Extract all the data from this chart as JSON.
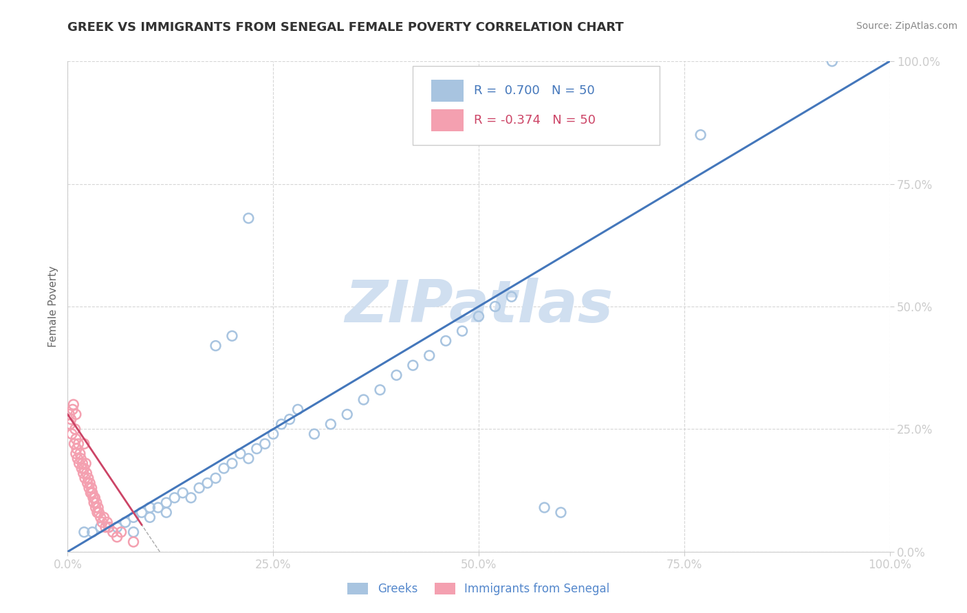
{
  "title": "GREEK VS IMMIGRANTS FROM SENEGAL FEMALE POVERTY CORRELATION CHART",
  "source_text": "Source: ZipAtlas.com",
  "ylabel": "Female Poverty",
  "ytick_values": [
    0,
    0.25,
    0.5,
    0.75,
    1.0
  ],
  "xtick_values": [
    0,
    0.25,
    0.5,
    0.75,
    1.0
  ],
  "xlim": [
    0,
    1.0
  ],
  "ylim": [
    0,
    1.0
  ],
  "greek_color": "#a8c4e0",
  "senegal_color": "#f4a0b0",
  "blue_line_color": "#4477bb",
  "pink_line_color": "#cc4466",
  "R_greek": 0.7,
  "R_senegal": -0.374,
  "N": 50,
  "watermark": "ZIPatlas",
  "watermark_color": "#d0dff0",
  "background_color": "#ffffff",
  "title_color": "#333333",
  "title_fontsize": 13,
  "tick_label_color": "#5588cc",
  "grid_color": "#cccccc",
  "legend_fontsize": 13,
  "greek_points_x": [
    0.02,
    0.03,
    0.04,
    0.05,
    0.06,
    0.07,
    0.08,
    0.08,
    0.09,
    0.1,
    0.1,
    0.11,
    0.12,
    0.12,
    0.13,
    0.14,
    0.15,
    0.16,
    0.17,
    0.18,
    0.19,
    0.2,
    0.21,
    0.22,
    0.23,
    0.24,
    0.25,
    0.26,
    0.27,
    0.28,
    0.3,
    0.32,
    0.34,
    0.36,
    0.38,
    0.4,
    0.42,
    0.44,
    0.46,
    0.48,
    0.5,
    0.52,
    0.54,
    0.18,
    0.2,
    0.22,
    0.58,
    0.6,
    0.77,
    0.93
  ],
  "greek_points_y": [
    0.04,
    0.04,
    0.05,
    0.05,
    0.05,
    0.06,
    0.04,
    0.07,
    0.08,
    0.07,
    0.09,
    0.09,
    0.1,
    0.08,
    0.11,
    0.12,
    0.11,
    0.13,
    0.14,
    0.15,
    0.17,
    0.18,
    0.2,
    0.19,
    0.21,
    0.22,
    0.24,
    0.26,
    0.27,
    0.29,
    0.24,
    0.26,
    0.28,
    0.31,
    0.33,
    0.36,
    0.38,
    0.4,
    0.43,
    0.45,
    0.48,
    0.5,
    0.52,
    0.42,
    0.44,
    0.68,
    0.09,
    0.08,
    0.85,
    1.0
  ],
  "senegal_points_x": [
    0.002,
    0.003,
    0.004,
    0.005,
    0.006,
    0.007,
    0.008,
    0.009,
    0.01,
    0.01,
    0.011,
    0.012,
    0.013,
    0.014,
    0.015,
    0.016,
    0.017,
    0.018,
    0.019,
    0.02,
    0.02,
    0.021,
    0.022,
    0.023,
    0.024,
    0.025,
    0.026,
    0.027,
    0.028,
    0.029,
    0.03,
    0.031,
    0.032,
    0.033,
    0.034,
    0.035,
    0.036,
    0.037,
    0.038,
    0.04,
    0.042,
    0.044,
    0.046,
    0.048,
    0.05,
    0.055,
    0.06,
    0.065,
    0.01,
    0.08
  ],
  "senegal_points_y": [
    0.28,
    0.26,
    0.27,
    0.24,
    0.29,
    0.3,
    0.22,
    0.25,
    0.2,
    0.23,
    0.21,
    0.19,
    0.22,
    0.18,
    0.2,
    0.19,
    0.17,
    0.18,
    0.16,
    0.17,
    0.22,
    0.15,
    0.18,
    0.16,
    0.14,
    0.15,
    0.13,
    0.14,
    0.12,
    0.13,
    0.12,
    0.11,
    0.1,
    0.11,
    0.09,
    0.1,
    0.08,
    0.09,
    0.08,
    0.07,
    0.06,
    0.07,
    0.05,
    0.06,
    0.05,
    0.04,
    0.03,
    0.04,
    0.28,
    0.02
  ]
}
